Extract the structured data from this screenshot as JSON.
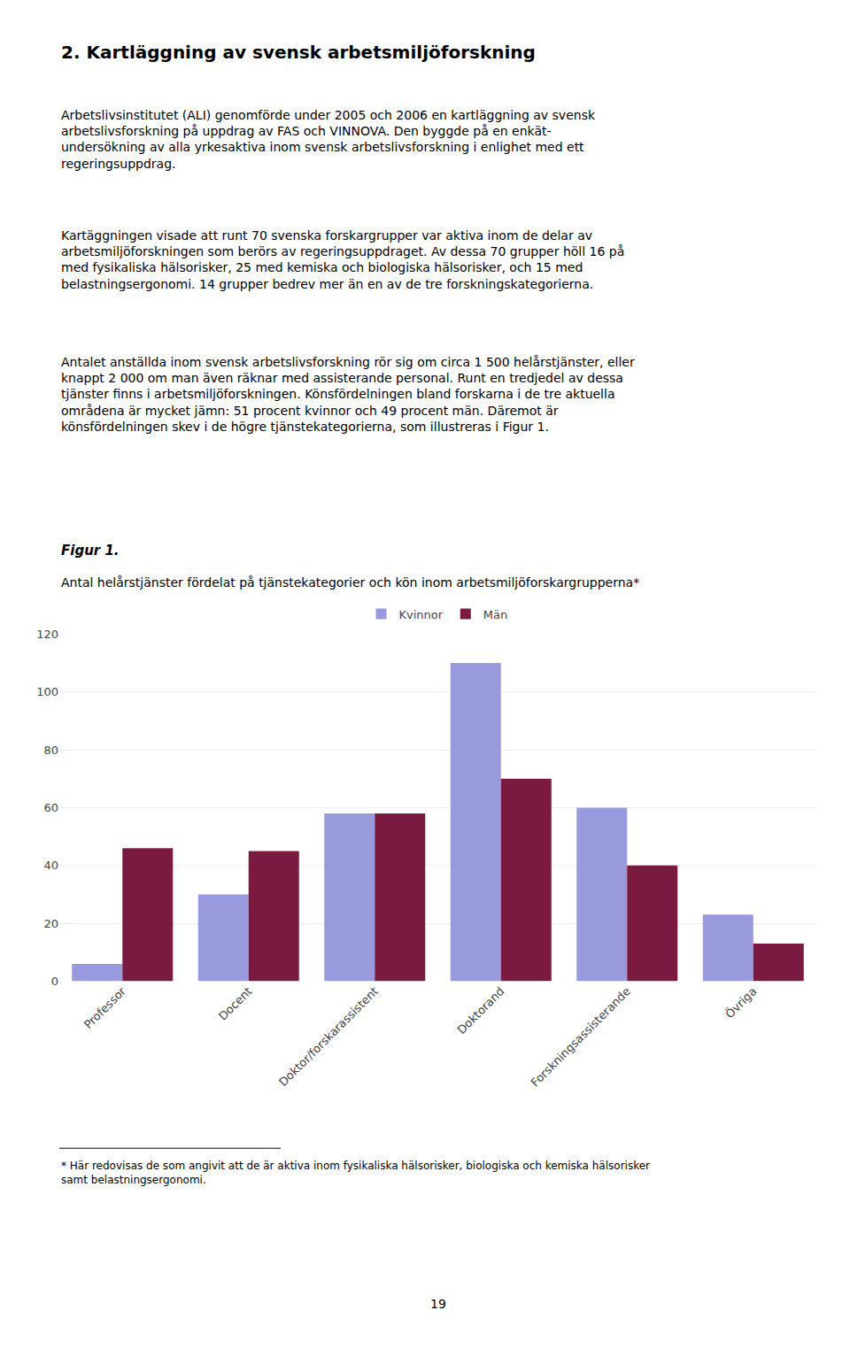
{
  "heading": "2. Kartläggning av svensk arbetsmiljöforskning",
  "paragraphs": [
    "Arbetslivsinstitutet (ALI) genomförde under 2005 och 2006 en kartläggning av svensk\narbetslivsforskning på uppdrag av FAS och VINNOVA. Den byggde på en enkät-\nundersökning av alla yrkesaktiva inom svensk arbetslivsforskning i enlighet med ett\nregeringsuppdrag.",
    "Kartäggningen visade att runt 70 svenska forskargrupper var aktiva inom de delar av\narbetsmiljöforskningen som berörs av regeringsuppdraget. Av dessa 70 grupper höll 16 på\nmed fysikaliska hälsorisker, 25 med kemiska och biologiska hälsorisker, och 15 med\nbelastningsergonomi. 14 grupper bedrev mer än en av de tre forskningskategorierna.",
    "Antalet anställda inom svensk arbetslivsforskning rör sig om circa 1 500 helårstjänster, eller\nknappt 2 000 om man även räknar med assisterande personal. Runt en tredjedel av dessa\ntjänster finns i arbetsmiljöforskningen. Könsfördelningen bland forskarna i de tre aktuella\nområdena är mycket jämn: 51 procent kvinnor och 49 procent män. Däremot är\nkönsfördelningen skev i de högre tjänstekategorierna, som illustreras i Figur 1."
  ],
  "figure_label": "Figur 1.",
  "footnote": [
    "* Här redovisas de som angivit att de är aktiva inom fysikaliska hälsorisker, biologiska och kemiska hälsorisker",
    "samt belastningsergonomi."
  ],
  "page_number": "19",
  "chart_data": {
    "type": "bar",
    "title": "Antal helårstjänster fördelat på tjänstekategorier och kön inom arbetsmiljöforskargrupperna*",
    "categories": [
      "Professor",
      "Docent",
      "Doktor/forskarassistent",
      "Doktorand",
      "Forskningsassisterande",
      "Övriga"
    ],
    "series": [
      {
        "name": "Kvinnor",
        "color": "#9999dd",
        "values": [
          6,
          30,
          58,
          110,
          60,
          23
        ]
      },
      {
        "name": "Män",
        "color": "#7b1a40",
        "values": [
          46,
          45,
          58,
          70,
          40,
          13
        ]
      }
    ],
    "ylim": [
      0,
      120
    ],
    "yticks": [
      0,
      20,
      40,
      60,
      80,
      100,
      120
    ],
    "grid": true,
    "legend": "top"
  }
}
